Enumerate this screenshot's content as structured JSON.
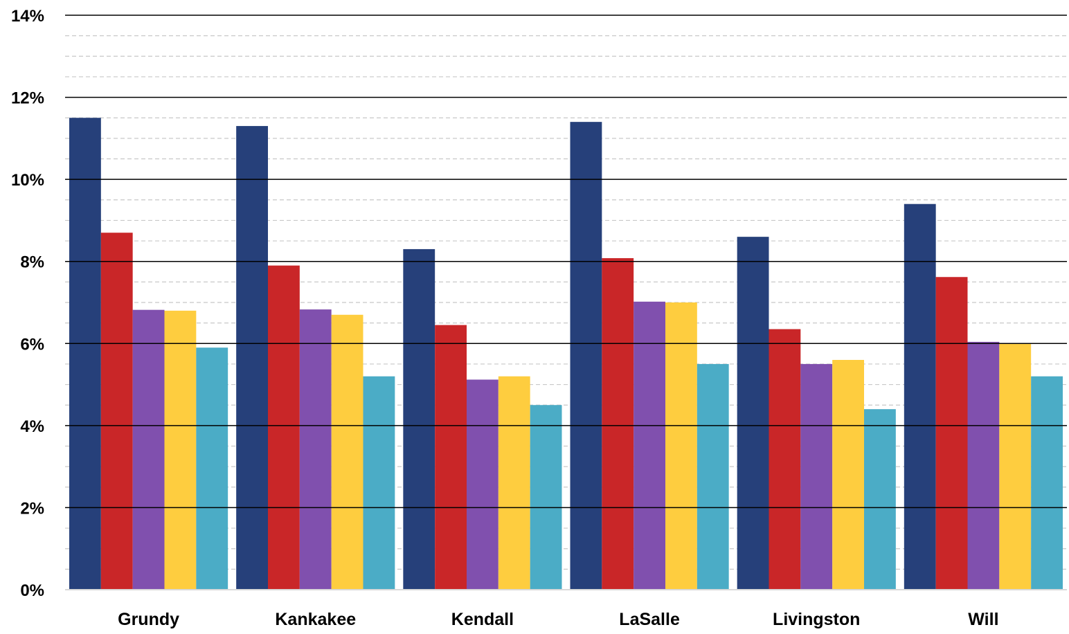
{
  "chart_data": {
    "type": "bar",
    "title": "",
    "xlabel": "",
    "ylabel": "",
    "ylim": [
      0,
      14
    ],
    "y_ticks": [
      "0%",
      "2%",
      "4%",
      "6%",
      "8%",
      "10%",
      "12%",
      "14%"
    ],
    "y_tick_values": [
      0,
      2,
      4,
      6,
      8,
      10,
      12,
      14
    ],
    "y_minor_step": 0.5,
    "grid": {
      "major": true,
      "minor": true,
      "minor_style": "dashed"
    },
    "legend": "none",
    "categories": [
      "Grundy",
      "Kankakee",
      "Kendall",
      "LaSalle",
      "Livingston",
      "Will"
    ],
    "series": [
      {
        "color": "#26407A",
        "values": [
          11.5,
          11.3,
          8.3,
          11.4,
          8.6,
          9.4
        ]
      },
      {
        "color": "#C92628",
        "values": [
          8.7,
          7.9,
          6.45,
          8.08,
          6.35,
          7.62
        ]
      },
      {
        "color": "#8050AE",
        "values": [
          6.82,
          6.83,
          5.12,
          7.02,
          5.5,
          6.04
        ]
      },
      {
        "color": "#FECD3F",
        "values": [
          6.8,
          6.7,
          5.2,
          7.0,
          5.6,
          6.0
        ]
      },
      {
        "color": "#4BACC6",
        "values": [
          5.9,
          5.2,
          4.5,
          5.5,
          4.4,
          5.2
        ]
      }
    ]
  }
}
